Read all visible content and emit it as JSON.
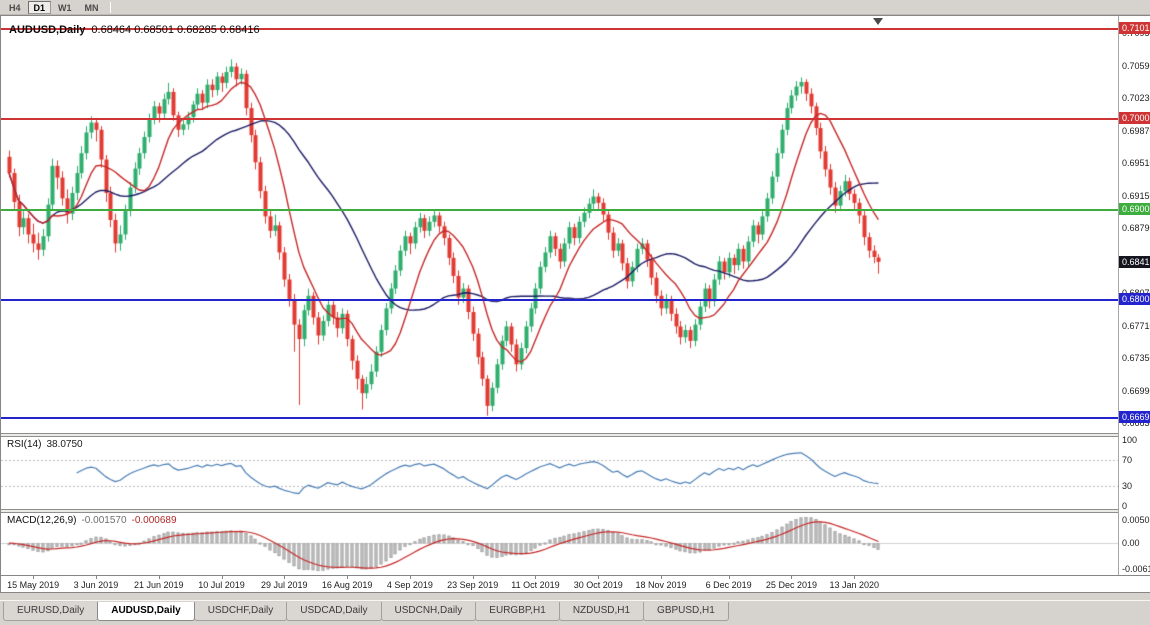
{
  "toolbar": {
    "buttons": [
      {
        "label": "H4",
        "active": false
      },
      {
        "label": "D1",
        "active": true
      },
      {
        "label": "W1",
        "active": false
      },
      {
        "label": "MN",
        "active": false
      }
    ]
  },
  "chart": {
    "title_symbol": "AUDUSD,Daily",
    "title_ohlc": "0.68464 0.68501 0.68285 0.68416"
  },
  "rsi": {
    "label": "RSI(14)",
    "value": "38.0750",
    "axis": [
      {
        "label": "100",
        "value": 100
      },
      {
        "label": "70",
        "value": 70
      },
      {
        "label": "30",
        "value": 30
      },
      {
        "label": "0",
        "value": 0
      }
    ],
    "levels": [
      70,
      30
    ]
  },
  "macd": {
    "label": "MACD(12,26,9)",
    "value_main": "-0.001570",
    "value_signal": "-0.000689",
    "axis_top": "0.005076",
    "axis_zero": "0.00",
    "axis_bottom": "-0.006148"
  },
  "bottom_tabs": {
    "items": [
      {
        "label": "EURUSD,Daily",
        "active": false
      },
      {
        "label": "AUDUSD,Daily",
        "active": true
      },
      {
        "label": "USDCHF,Daily",
        "active": false
      },
      {
        "label": "USDCAD,Daily",
        "active": false
      },
      {
        "label": "USDCNH,Daily",
        "active": false
      },
      {
        "label": "EURGBP,H1",
        "active": false
      },
      {
        "label": "NZDUSD,H1",
        "active": false
      },
      {
        "label": "GBPUSD,H1",
        "active": false
      }
    ]
  },
  "chart_data": {
    "type": "candlestick",
    "symbol": "AUDUSD",
    "timeframe": "Daily",
    "note": "candles are [open,high,low,close] encoded as price*10000",
    "y_axis_range": [
      0.6653,
      0.7113
    ],
    "y_ticks": [
      "0.70950",
      "0.70590",
      "0.70230",
      "0.69870",
      "0.69510",
      "0.69150",
      "0.68790",
      "0.68430",
      "0.68070",
      "0.67710",
      "0.67350",
      "0.66990",
      "0.66630"
    ],
    "x_labels": [
      {
        "i": 5,
        "t": "15 May 2019"
      },
      {
        "i": 18,
        "t": "3 Jun 2019"
      },
      {
        "i": 31,
        "t": "21 Jun 2019"
      },
      {
        "i": 44,
        "t": "10 Jul 2019"
      },
      {
        "i": 57,
        "t": "29 Jul 2019"
      },
      {
        "i": 70,
        "t": "16 Aug 2019"
      },
      {
        "i": 83,
        "t": "4 Sep 2019"
      },
      {
        "i": 96,
        "t": "23 Sep 2019"
      },
      {
        "i": 109,
        "t": "11 Oct 2019"
      },
      {
        "i": 122,
        "t": "30 Oct 2019"
      },
      {
        "i": 135,
        "t": "18 Nov 2019"
      },
      {
        "i": 149,
        "t": "6 Dec 2019"
      },
      {
        "i": 162,
        "t": "25 Dec 2019"
      },
      {
        "i": 175,
        "t": "13 Jan 2020"
      }
    ],
    "horizontal_lines": [
      {
        "price": 0.71013,
        "label": "0.71013",
        "color": "#cf3434",
        "width": 2,
        "style": "line"
      },
      {
        "price": 0.70005,
        "label": "0.70005",
        "color": "#cf3434",
        "width": 2,
        "style": "line"
      },
      {
        "price": 0.69001,
        "label": "0.69001",
        "color": "#3dae3d",
        "width": 2,
        "style": "line"
      },
      {
        "price": 0.68416,
        "label": "0.68416",
        "color": "#15151f",
        "style": "price"
      },
      {
        "price": 0.68008,
        "label": "0.68008",
        "color": "#2424cf",
        "width": 2,
        "style": "line"
      },
      {
        "price": 0.66699,
        "label": "0.66699",
        "color": "#2424cf",
        "width": 2,
        "style": "line"
      }
    ],
    "overlays": [
      {
        "type": "sma",
        "period": 10,
        "color": "#c62828"
      },
      {
        "type": "sma",
        "period": 30,
        "color": "#1d1d66"
      }
    ],
    "colors": {
      "up": "#2fae6e",
      "down": "#e23b33",
      "rsi_line": "#4a7db5",
      "rsi_level": "#bdbdbd",
      "macd_hist": "#cbcbcb",
      "macd_hist_edge": "#a6a6a6",
      "macd_signal": "#c62828"
    },
    "candles": [
      [
        6958,
        6965,
        6935,
        6940
      ],
      [
        6940,
        6945,
        6900,
        6908
      ],
      [
        6908,
        6916,
        6870,
        6880
      ],
      [
        6880,
        6898,
        6872,
        6890
      ],
      [
        6890,
        6895,
        6862,
        6872
      ],
      [
        6872,
        6884,
        6852,
        6862
      ],
      [
        6862,
        6874,
        6844,
        6855
      ],
      [
        6855,
        6878,
        6848,
        6870
      ],
      [
        6870,
        6912,
        6864,
        6905
      ],
      [
        6905,
        6956,
        6898,
        6948
      ],
      [
        6948,
        6954,
        6922,
        6935
      ],
      [
        6935,
        6942,
        6904,
        6912
      ],
      [
        6912,
        6922,
        6884,
        6895
      ],
      [
        6895,
        6925,
        6888,
        6918
      ],
      [
        6918,
        6948,
        6910,
        6940
      ],
      [
        6940,
        6970,
        6934,
        6962
      ],
      [
        6962,
        6992,
        6955,
        6985
      ],
      [
        6985,
        7003,
        6978,
        6996
      ],
      [
        6996,
        7001,
        6975,
        6988
      ],
      [
        6988,
        6992,
        6946,
        6955
      ],
      [
        6955,
        6960,
        6908,
        6918
      ],
      [
        6918,
        6925,
        6880,
        6888
      ],
      [
        6888,
        6895,
        6852,
        6862
      ],
      [
        6862,
        6882,
        6854,
        6872
      ],
      [
        6872,
        6905,
        6866,
        6898
      ],
      [
        6898,
        6930,
        6892,
        6924
      ],
      [
        6924,
        6952,
        6918,
        6945
      ],
      [
        6945,
        6968,
        6938,
        6962
      ],
      [
        6962,
        6986,
        6956,
        6980
      ],
      [
        6980,
        7006,
        6974,
        7000
      ],
      [
        7000,
        7020,
        6994,
        7014
      ],
      [
        7014,
        7018,
        6996,
        7006
      ],
      [
        7006,
        7028,
        7000,
        7022
      ],
      [
        7022,
        7040,
        7016,
        7030
      ],
      [
        7030,
        7034,
        6998,
        7004
      ],
      [
        7004,
        7008,
        6980,
        6988
      ],
      [
        6988,
        7000,
        6982,
        6994
      ],
      [
        6994,
        7008,
        6988,
        7002
      ],
      [
        7002,
        7020,
        6996,
        7016
      ],
      [
        7016,
        7034,
        7010,
        7028
      ],
      [
        7028,
        7032,
        7010,
        7018
      ],
      [
        7018,
        7044,
        7012,
        7038
      ],
      [
        7038,
        7044,
        7024,
        7032
      ],
      [
        7032,
        7052,
        7026,
        7047
      ],
      [
        7047,
        7051,
        7030,
        7040
      ],
      [
        7040,
        7058,
        7034,
        7052
      ],
      [
        7052,
        7066,
        7046,
        7058
      ],
      [
        7058,
        7062,
        7036,
        7044
      ],
      [
        7044,
        7056,
        7038,
        7050
      ],
      [
        7050,
        7054,
        7004,
        7012
      ],
      [
        7012,
        7018,
        6974,
        6982
      ],
      [
        6982,
        6988,
        6944,
        6952
      ],
      [
        6952,
        6958,
        6912,
        6920
      ],
      [
        6920,
        6926,
        6884,
        6892
      ],
      [
        6892,
        6900,
        6868,
        6876
      ],
      [
        6876,
        6894,
        6870,
        6882
      ],
      [
        6882,
        6886,
        6844,
        6852
      ],
      [
        6852,
        6858,
        6814,
        6822
      ],
      [
        6822,
        6828,
        6792,
        6800
      ],
      [
        6800,
        6806,
        6742,
        6772
      ],
      [
        6772,
        6778,
        6683,
        6756
      ],
      [
        6756,
        6794,
        6748,
        6788
      ],
      [
        6788,
        6812,
        6782,
        6804
      ],
      [
        6804,
        6808,
        6772,
        6780
      ],
      [
        6780,
        6786,
        6750,
        6760
      ],
      [
        6760,
        6782,
        6754,
        6776
      ],
      [
        6776,
        6800,
        6770,
        6794
      ],
      [
        6794,
        6798,
        6772,
        6780
      ],
      [
        6780,
        6786,
        6758,
        6768
      ],
      [
        6768,
        6790,
        6762,
        6784
      ],
      [
        6784,
        6788,
        6748,
        6756
      ],
      [
        6756,
        6760,
        6722,
        6732
      ],
      [
        6732,
        6738,
        6700,
        6712
      ],
      [
        6712,
        6716,
        6678,
        6696
      ],
      [
        6696,
        6714,
        6690,
        6706
      ],
      [
        6706,
        6728,
        6700,
        6720
      ],
      [
        6720,
        6748,
        6714,
        6742
      ],
      [
        6742,
        6772,
        6736,
        6766
      ],
      [
        6766,
        6796,
        6760,
        6790
      ],
      [
        6790,
        6818,
        6784,
        6812
      ],
      [
        6812,
        6838,
        6806,
        6832
      ],
      [
        6832,
        6860,
        6826,
        6854
      ],
      [
        6854,
        6876,
        6848,
        6870
      ],
      [
        6870,
        6874,
        6850,
        6862
      ],
      [
        6862,
        6886,
        6856,
        6880
      ],
      [
        6880,
        6896,
        6874,
        6890
      ],
      [
        6890,
        6894,
        6868,
        6876
      ],
      [
        6876,
        6892,
        6870,
        6886
      ],
      [
        6886,
        6899,
        6880,
        6893
      ],
      [
        6893,
        6897,
        6874,
        6881
      ],
      [
        6881,
        6886,
        6860,
        6868
      ],
      [
        6868,
        6872,
        6838,
        6846
      ],
      [
        6846,
        6852,
        6818,
        6826
      ],
      [
        6826,
        6832,
        6794,
        6802
      ],
      [
        6802,
        6818,
        6796,
        6812
      ],
      [
        6812,
        6816,
        6778,
        6786
      ],
      [
        6786,
        6792,
        6754,
        6762
      ],
      [
        6762,
        6768,
        6728,
        6736
      ],
      [
        6736,
        6742,
        6704,
        6712
      ],
      [
        6712,
        6716,
        6671,
        6682
      ],
      [
        6682,
        6708,
        6676,
        6702
      ],
      [
        6702,
        6734,
        6696,
        6728
      ],
      [
        6728,
        6760,
        6722,
        6754
      ],
      [
        6754,
        6776,
        6748,
        6770
      ],
      [
        6770,
        6774,
        6742,
        6750
      ],
      [
        6750,
        6756,
        6720,
        6728
      ],
      [
        6728,
        6752,
        6722,
        6746
      ],
      [
        6746,
        6776,
        6740,
        6770
      ],
      [
        6770,
        6796,
        6764,
        6790
      ],
      [
        6790,
        6818,
        6784,
        6812
      ],
      [
        6812,
        6842,
        6806,
        6836
      ],
      [
        6836,
        6858,
        6830,
        6852
      ],
      [
        6852,
        6876,
        6846,
        6870
      ],
      [
        6870,
        6874,
        6848,
        6856
      ],
      [
        6856,
        6862,
        6834,
        6842
      ],
      [
        6842,
        6868,
        6836,
        6862
      ],
      [
        6862,
        6886,
        6856,
        6880
      ],
      [
        6880,
        6884,
        6860,
        6868
      ],
      [
        6868,
        6892,
        6862,
        6886
      ],
      [
        6886,
        6902,
        6880,
        6896
      ],
      [
        6896,
        6912,
        6890,
        6906
      ],
      [
        6906,
        6922,
        6900,
        6914
      ],
      [
        6914,
        6918,
        6898,
        6907
      ],
      [
        6907,
        6912,
        6886,
        6894
      ],
      [
        6894,
        6898,
        6866,
        6874
      ],
      [
        6874,
        6880,
        6846,
        6854
      ],
      [
        6854,
        6868,
        6848,
        6862
      ],
      [
        6862,
        6866,
        6832,
        6840
      ],
      [
        6840,
        6846,
        6812,
        6820
      ],
      [
        6820,
        6842,
        6814,
        6836
      ],
      [
        6836,
        6862,
        6830,
        6856
      ],
      [
        6856,
        6868,
        6850,
        6862
      ],
      [
        6862,
        6866,
        6836,
        6844
      ],
      [
        6844,
        6850,
        6816,
        6824
      ],
      [
        6824,
        6830,
        6796,
        6804
      ],
      [
        6804,
        6810,
        6782,
        6790
      ],
      [
        6790,
        6806,
        6784,
        6800
      ],
      [
        6800,
        6804,
        6776,
        6784
      ],
      [
        6784,
        6790,
        6762,
        6770
      ],
      [
        6770,
        6776,
        6750,
        6758
      ],
      [
        6758,
        6772,
        6752,
        6766
      ],
      [
        6766,
        6770,
        6746,
        6754
      ],
      [
        6754,
        6778,
        6748,
        6772
      ],
      [
        6772,
        6798,
        6766,
        6792
      ],
      [
        6792,
        6818,
        6786,
        6812
      ],
      [
        6812,
        6816,
        6790,
        6798
      ],
      [
        6798,
        6828,
        6792,
        6822
      ],
      [
        6822,
        6848,
        6816,
        6842
      ],
      [
        6842,
        6846,
        6822,
        6830
      ],
      [
        6830,
        6852,
        6824,
        6846
      ],
      [
        6846,
        6850,
        6828,
        6838
      ],
      [
        6838,
        6862,
        6832,
        6856
      ],
      [
        6856,
        6860,
        6834,
        6842
      ],
      [
        6842,
        6870,
        6836,
        6864
      ],
      [
        6864,
        6888,
        6858,
        6882
      ],
      [
        6882,
        6886,
        6862,
        6872
      ],
      [
        6872,
        6898,
        6866,
        6892
      ],
      [
        6892,
        6918,
        6886,
        6912
      ],
      [
        6912,
        6942,
        6906,
        6936
      ],
      [
        6936,
        6968,
        6930,
        6962
      ],
      [
        6962,
        6994,
        6956,
        6988
      ],
      [
        6988,
        7018,
        6982,
        7012
      ],
      [
        7012,
        7032,
        7006,
        7026
      ],
      [
        7026,
        7042,
        7020,
        7036
      ],
      [
        7036,
        7046,
        7028,
        7041
      ],
      [
        7041,
        7044,
        7020,
        7028
      ],
      [
        7028,
        7034,
        7006,
        7014
      ],
      [
        7014,
        7018,
        6982,
        6990
      ],
      [
        6990,
        6996,
        6956,
        6964
      ],
      [
        6964,
        6970,
        6936,
        6944
      ],
      [
        6944,
        6950,
        6916,
        6924
      ],
      [
        6924,
        6930,
        6896,
        6904
      ],
      [
        6904,
        6926,
        6898,
        6920
      ],
      [
        6920,
        6938,
        6914,
        6931
      ],
      [
        6931,
        6935,
        6910,
        6917
      ],
      [
        6917,
        6922,
        6898,
        6907
      ],
      [
        6907,
        6912,
        6884,
        6893
      ],
      [
        6893,
        6898,
        6860,
        6869
      ],
      [
        6869,
        6874,
        6846,
        6854
      ],
      [
        6854,
        6860,
        6840,
        6847
      ],
      [
        6846.4,
        6850.1,
        6828.5,
        6841.6
      ]
    ]
  }
}
